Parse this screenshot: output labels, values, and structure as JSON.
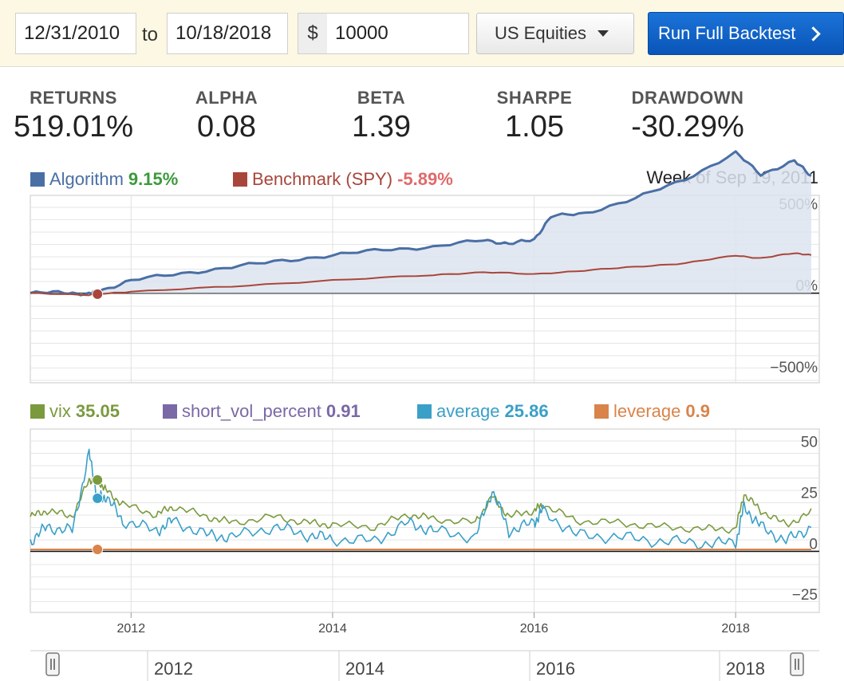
{
  "toolbar": {
    "start_date": "12/31/2010",
    "to_label": "to",
    "end_date": "10/18/2018",
    "currency_symbol": "$",
    "capital": "10000",
    "universe": "US Equities",
    "run_label": "Run Full Backtest"
  },
  "stats": [
    {
      "label": "RETURNS",
      "value": "519.01%"
    },
    {
      "label": "ALPHA",
      "value": "0.08"
    },
    {
      "label": "BETA",
      "value": "1.39"
    },
    {
      "label": "SHARPE",
      "value": "1.05"
    },
    {
      "label": "DRAWDOWN",
      "value": "-30.29%"
    }
  ],
  "week_label": "Week of Sep 19, 2011",
  "colors": {
    "algorithm": "#4a6fa5",
    "benchmark": "#a8463c",
    "vix": "#7b9a3e",
    "short_vol": "#7b68a6",
    "average": "#3aa0c8",
    "leverage": "#d9844a",
    "green_value": "#3c9a3c",
    "red_value": "#e06a6a"
  },
  "chart_data": [
    {
      "type": "line",
      "legend_placement": "top-left",
      "grid": true,
      "ylim": [
        -550,
        600
      ],
      "yticks": [
        500,
        0,
        -500
      ],
      "ytick_labels": [
        "500%",
        "0%",
        "−500%"
      ],
      "x_range": [
        "2011-01",
        "2018-10"
      ],
      "series": [
        {
          "name": "Algorithm",
          "legend_value": "9.15%",
          "points": [
            [
              "2011-01",
              0
            ],
            [
              "2011-05",
              5
            ],
            [
              "2011-08",
              -5
            ],
            [
              "2011-09",
              9
            ],
            [
              "2012-01",
              80
            ],
            [
              "2012-07",
              120
            ],
            [
              "2013-01",
              160
            ],
            [
              "2013-07",
              200
            ],
            [
              "2014-01",
              230
            ],
            [
              "2014-07",
              270
            ],
            [
              "2015-01",
              280
            ],
            [
              "2015-07",
              330
            ],
            [
              "2015-10",
              300
            ],
            [
              "2016-01",
              330
            ],
            [
              "2016-03",
              470
            ],
            [
              "2016-07",
              490
            ],
            [
              "2017-01",
              580
            ],
            [
              "2017-07",
              700
            ],
            [
              "2018-01",
              860
            ],
            [
              "2018-04",
              730
            ],
            [
              "2018-08",
              810
            ],
            [
              "2018-10",
              720
            ]
          ]
        },
        {
          "name": "Benchmark (SPY)",
          "legend_value": "-5.89%",
          "points": [
            [
              "2011-01",
              0
            ],
            [
              "2011-08",
              -10
            ],
            [
              "2011-09",
              -6
            ],
            [
              "2012-01",
              10
            ],
            [
              "2013-01",
              40
            ],
            [
              "2014-01",
              80
            ],
            [
              "2015-01",
              110
            ],
            [
              "2015-07",
              130
            ],
            [
              "2016-01",
              115
            ],
            [
              "2016-07",
              140
            ],
            [
              "2017-01",
              160
            ],
            [
              "2017-07",
              185
            ],
            [
              "2018-01",
              230
            ],
            [
              "2018-04",
              215
            ],
            [
              "2018-08",
              245
            ],
            [
              "2018-10",
              235
            ]
          ]
        }
      ]
    },
    {
      "type": "line",
      "legend_placement": "top-left",
      "grid": true,
      "ylim": [
        -30,
        60
      ],
      "yticks": [
        50,
        25,
        0,
        -25
      ],
      "ytick_labels": [
        "50",
        "25",
        "0",
        "−25"
      ],
      "xtick_labels": [
        "2012",
        "2014",
        "2016",
        "2018"
      ],
      "xticks": [
        "2012-01",
        "2014-01",
        "2016-01",
        "2018-01"
      ],
      "x_range": [
        "2011-01",
        "2018-10"
      ],
      "series": [
        {
          "name": "vix",
          "legend_value": "35.05",
          "points": [
            [
              "2011-01",
              17
            ],
            [
              "2011-03",
              20
            ],
            [
              "2011-06",
              17
            ],
            [
              "2011-08",
              35
            ],
            [
              "2011-09",
              35
            ],
            [
              "2011-10",
              30
            ],
            [
              "2011-12",
              23
            ],
            [
              "2012-04",
              18
            ],
            [
              "2012-06",
              22
            ],
            [
              "2012-10",
              17
            ],
            [
              "2013-01",
              14
            ],
            [
              "2013-06",
              17
            ],
            [
              "2013-10",
              14
            ],
            [
              "2014-01",
              13
            ],
            [
              "2014-06",
              12
            ],
            [
              "2014-10",
              18
            ],
            [
              "2015-01",
              16
            ],
            [
              "2015-06",
              14
            ],
            [
              "2015-08",
              27
            ],
            [
              "2015-10",
              17
            ],
            [
              "2016-01",
              20
            ],
            [
              "2016-02",
              23
            ],
            [
              "2016-06",
              15
            ],
            [
              "2016-11",
              14
            ],
            [
              "2017-04",
              12
            ],
            [
              "2017-09",
              11
            ],
            [
              "2018-01",
              11
            ],
            [
              "2018-02",
              28
            ],
            [
              "2018-04",
              20
            ],
            [
              "2018-07",
              13
            ],
            [
              "2018-10",
              19
            ]
          ]
        },
        {
          "name": "short_vol_percent",
          "legend_value": "0.91",
          "points": [
            [
              "2011-01",
              0.9
            ],
            [
              "2018-10",
              0.9
            ]
          ]
        },
        {
          "name": "average",
          "legend_value": "25.86",
          "points": [
            [
              "2011-01",
              5
            ],
            [
              "2011-03",
              12
            ],
            [
              "2011-06",
              10
            ],
            [
              "2011-08",
              48
            ],
            [
              "2011-09",
              26
            ],
            [
              "2011-10",
              27
            ],
            [
              "2011-12",
              15
            ],
            [
              "2012-04",
              10
            ],
            [
              "2012-06",
              15
            ],
            [
              "2012-10",
              8
            ],
            [
              "2013-01",
              7
            ],
            [
              "2013-06",
              12
            ],
            [
              "2013-10",
              8
            ],
            [
              "2014-01",
              6
            ],
            [
              "2014-06",
              5
            ],
            [
              "2014-10",
              14
            ],
            [
              "2015-01",
              10
            ],
            [
              "2015-06",
              7
            ],
            [
              "2015-08",
              30
            ],
            [
              "2015-10",
              10
            ],
            [
              "2016-01",
              14
            ],
            [
              "2016-02",
              20
            ],
            [
              "2016-06",
              8
            ],
            [
              "2016-11",
              7
            ],
            [
              "2017-04",
              5
            ],
            [
              "2017-09",
              4
            ],
            [
              "2018-01",
              4
            ],
            [
              "2018-02",
              22
            ],
            [
              "2018-04",
              12
            ],
            [
              "2018-07",
              5
            ],
            [
              "2018-10",
              12
            ]
          ]
        },
        {
          "name": "leverage",
          "legend_value": "0.9",
          "points": [
            [
              "2011-01",
              0.9
            ],
            [
              "2018-10",
              0.9
            ]
          ]
        }
      ]
    }
  ],
  "navigator": {
    "labels": [
      "2012",
      "2014",
      "2016",
      "2018"
    ]
  }
}
